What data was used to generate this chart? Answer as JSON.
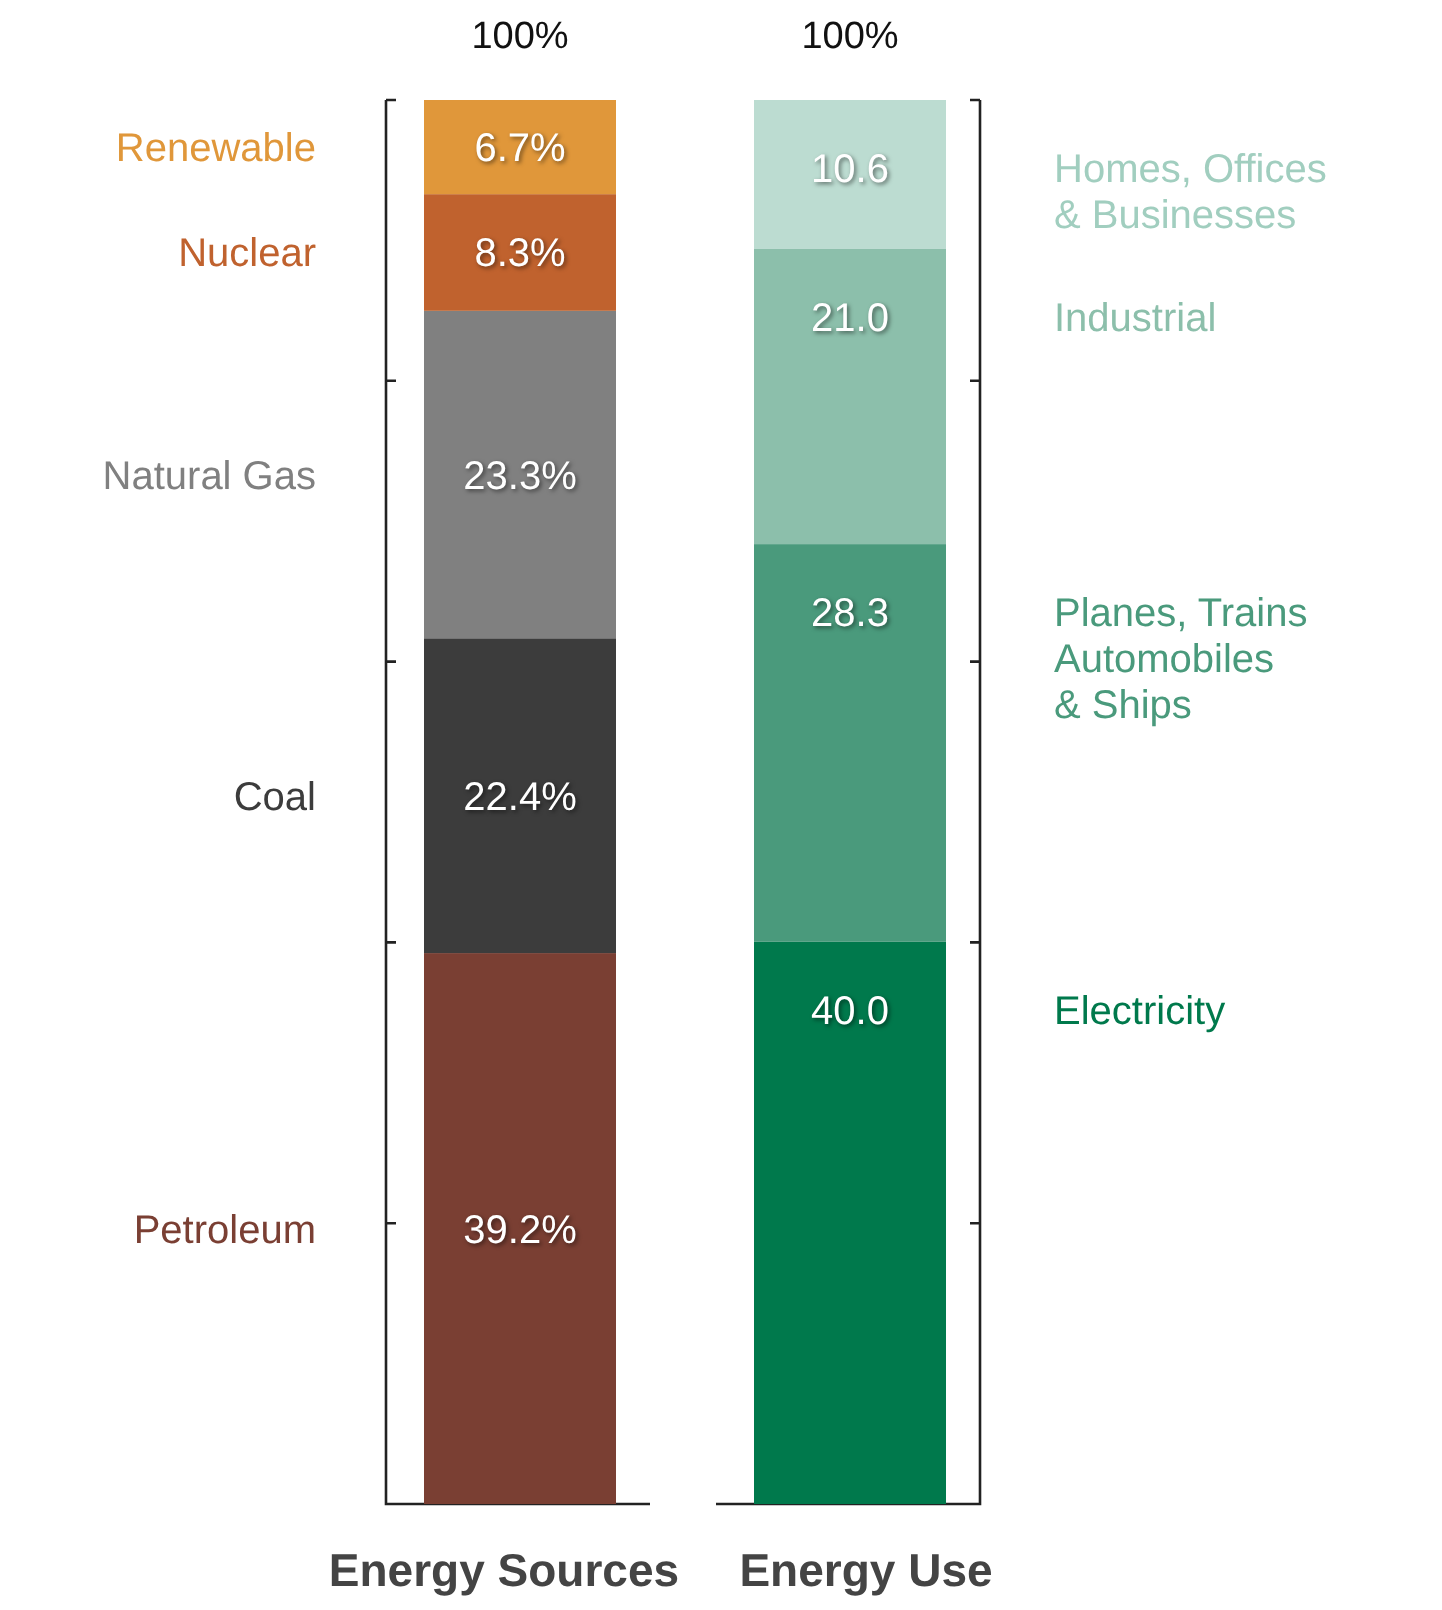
{
  "chart_data": {
    "type": "bar",
    "stacked": true,
    "categories": [
      "Energy Sources",
      "Energy Use"
    ],
    "tick_labels": "x",
    "totals": [
      "100%",
      "100%"
    ],
    "series": [
      {
        "name": "Petroleum",
        "color": "#7a3f33",
        "values": [
          39.2,
          null
        ],
        "value_labels": [
          "39.2%",
          null
        ]
      },
      {
        "name": "Coal",
        "color": "#3c3c3c",
        "values": [
          22.4,
          null
        ],
        "value_labels": [
          "22.4%",
          null
        ]
      },
      {
        "name": "Natural Gas",
        "color": "#808080",
        "values": [
          23.3,
          null
        ],
        "value_labels": [
          "23.3%",
          null
        ]
      },
      {
        "name": "Nuclear",
        "color": "#c0622e",
        "values": [
          8.3,
          null
        ],
        "value_labels": [
          "8.3%",
          null
        ]
      },
      {
        "name": "Renewable",
        "color": "#e0973a",
        "values": [
          6.7,
          null
        ],
        "value_labels": [
          "6.7%",
          null
        ]
      },
      {
        "name": "Electricity",
        "color": "#00794c",
        "values": [
          null,
          40.0
        ],
        "value_labels": [
          null,
          "40.0"
        ]
      },
      {
        "name": "Planes, Trains\nAutomobiles\n& Ships",
        "color": "#4a9a7c",
        "values": [
          null,
          28.3
        ],
        "value_labels": [
          null,
          "28.3"
        ]
      },
      {
        "name": "Industrial",
        "color": "#8cbfab",
        "values": [
          null,
          21.0
        ],
        "value_labels": [
          null,
          "21.0"
        ]
      },
      {
        "name": "Homes, Offices\n& Businesses",
        "color": "#bcdcd1",
        "values": [
          null,
          10.6
        ],
        "value_labels": [
          null,
          "10.6"
        ]
      }
    ]
  }
}
